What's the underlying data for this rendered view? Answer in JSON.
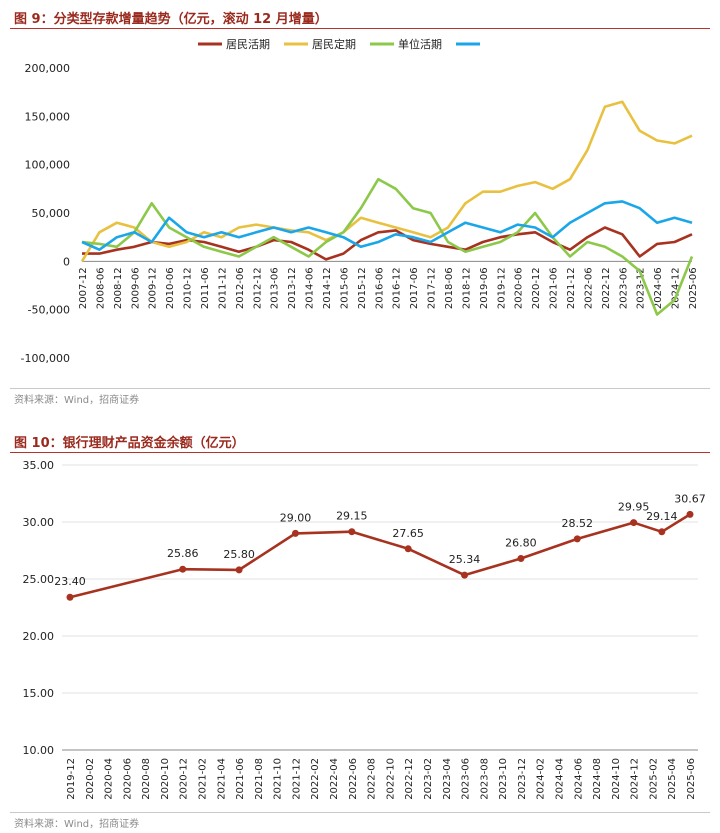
{
  "figure9": {
    "title": "图 9：分类型存款增量趋势（亿元，滚动 12 月增量）",
    "source": "资料来源：Wind，招商证券",
    "legend_color_unlabeled": "#1aa6e8"
  },
  "figure10": {
    "title": "图 10：银行理财产品资金余额（亿元）",
    "source": "资料来源：Wind，招商证券"
  },
  "chart_data": [
    {
      "type": "line",
      "title": "",
      "xlabel": "",
      "ylabel": "",
      "ylim": [
        -100000,
        200000
      ],
      "yticks": [
        -100000,
        -50000,
        0,
        50000,
        100000,
        150000,
        200000
      ],
      "ytick_labels": [
        "-100,000",
        "-50,000",
        "0",
        "50,000",
        "100,000",
        "150,000",
        "200,000"
      ],
      "xticks": [
        "2007-12",
        "2008-06",
        "2008-12",
        "2009-06",
        "2009-12",
        "2010-06",
        "2010-12",
        "2011-06",
        "2011-12",
        "2012-06",
        "2012-12",
        "2013-06",
        "2013-12",
        "2014-06",
        "2014-12",
        "2015-06",
        "2015-12",
        "2016-06",
        "2016-12",
        "2017-06",
        "2017-12",
        "2018-06",
        "2018-12",
        "2019-06",
        "2019-12",
        "2020-06",
        "2020-12",
        "2021-06",
        "2021-12",
        "2022-06",
        "2022-12",
        "2023-06",
        "2023-12",
        "2024-06",
        "2024-12",
        "2025-06"
      ],
      "grid": false,
      "legend_position": "top",
      "series": [
        {
          "name": "居民活期",
          "color": "#a83220",
          "points": [
            [
              "2007-12",
              8000
            ],
            [
              "2008-06",
              8000
            ],
            [
              "2008-12",
              12000
            ],
            [
              "2009-06",
              15000
            ],
            [
              "2009-12",
              20000
            ],
            [
              "2010-06",
              18000
            ],
            [
              "2010-12",
              22000
            ],
            [
              "2011-06",
              20000
            ],
            [
              "2011-12",
              15000
            ],
            [
              "2012-06",
              10000
            ],
            [
              "2012-12",
              15000
            ],
            [
              "2013-06",
              22000
            ],
            [
              "2013-12",
              20000
            ],
            [
              "2014-06",
              12000
            ],
            [
              "2014-12",
              2000
            ],
            [
              "2015-06",
              8000
            ],
            [
              "2015-12",
              22000
            ],
            [
              "2016-06",
              30000
            ],
            [
              "2016-12",
              32000
            ],
            [
              "2017-06",
              22000
            ],
            [
              "2017-12",
              18000
            ],
            [
              "2018-06",
              15000
            ],
            [
              "2018-12",
              12000
            ],
            [
              "2019-06",
              20000
            ],
            [
              "2019-12",
              25000
            ],
            [
              "2020-06",
              28000
            ],
            [
              "2020-12",
              30000
            ],
            [
              "2021-06",
              20000
            ],
            [
              "2021-12",
              12000
            ],
            [
              "2022-06",
              25000
            ],
            [
              "2022-12",
              35000
            ],
            [
              "2023-06",
              28000
            ],
            [
              "2023-12",
              5000
            ],
            [
              "2024-06",
              18000
            ],
            [
              "2024-12",
              20000
            ],
            [
              "2025-06",
              28000
            ]
          ]
        },
        {
          "name": "居民定期",
          "color": "#e8c140",
          "points": [
            [
              "2007-12",
              0
            ],
            [
              "2008-06",
              30000
            ],
            [
              "2008-12",
              40000
            ],
            [
              "2009-06",
              35000
            ],
            [
              "2009-12",
              20000
            ],
            [
              "2010-06",
              15000
            ],
            [
              "2010-12",
              20000
            ],
            [
              "2011-06",
              30000
            ],
            [
              "2011-12",
              25000
            ],
            [
              "2012-06",
              35000
            ],
            [
              "2012-12",
              38000
            ],
            [
              "2013-06",
              35000
            ],
            [
              "2013-12",
              32000
            ],
            [
              "2014-06",
              30000
            ],
            [
              "2014-12",
              22000
            ],
            [
              "2015-06",
              30000
            ],
            [
              "2015-12",
              45000
            ],
            [
              "2016-06",
              40000
            ],
            [
              "2016-12",
              35000
            ],
            [
              "2017-06",
              30000
            ],
            [
              "2017-12",
              25000
            ],
            [
              "2018-06",
              35000
            ],
            [
              "2018-12",
              60000
            ],
            [
              "2019-06",
              72000
            ],
            [
              "2019-12",
              72000
            ],
            [
              "2020-06",
              78000
            ],
            [
              "2020-12",
              82000
            ],
            [
              "2021-06",
              75000
            ],
            [
              "2021-12",
              85000
            ],
            [
              "2022-06",
              115000
            ],
            [
              "2022-12",
              160000
            ],
            [
              "2023-06",
              165000
            ],
            [
              "2023-12",
              135000
            ],
            [
              "2024-06",
              125000
            ],
            [
              "2024-12",
              122000
            ],
            [
              "2025-06",
              130000
            ]
          ]
        },
        {
          "name": "单位活期",
          "color": "#8cc84a",
          "points": [
            [
              "2007-12",
              20000
            ],
            [
              "2008-06",
              18000
            ],
            [
              "2008-12",
              15000
            ],
            [
              "2009-06",
              30000
            ],
            [
              "2009-12",
              60000
            ],
            [
              "2010-06",
              35000
            ],
            [
              "2010-12",
              25000
            ],
            [
              "2011-06",
              15000
            ],
            [
              "2011-12",
              10000
            ],
            [
              "2012-06",
              5000
            ],
            [
              "2012-12",
              15000
            ],
            [
              "2013-06",
              25000
            ],
            [
              "2013-12",
              15000
            ],
            [
              "2014-06",
              5000
            ],
            [
              "2014-12",
              20000
            ],
            [
              "2015-06",
              30000
            ],
            [
              "2015-12",
              55000
            ],
            [
              "2016-06",
              85000
            ],
            [
              "2016-12",
              75000
            ],
            [
              "2017-06",
              55000
            ],
            [
              "2017-12",
              50000
            ],
            [
              "2018-06",
              20000
            ],
            [
              "2018-12",
              10000
            ],
            [
              "2019-06",
              15000
            ],
            [
              "2019-12",
              20000
            ],
            [
              "2020-06",
              30000
            ],
            [
              "2020-12",
              50000
            ],
            [
              "2021-06",
              25000
            ],
            [
              "2021-12",
              5000
            ],
            [
              "2022-06",
              20000
            ],
            [
              "2022-12",
              15000
            ],
            [
              "2023-06",
              5000
            ],
            [
              "2023-12",
              -10000
            ],
            [
              "2024-06",
              -55000
            ],
            [
              "2024-12",
              -40000
            ],
            [
              "2025-06",
              5000
            ]
          ]
        },
        {
          "name": "",
          "color": "#1aa6e8",
          "points": [
            [
              "2007-12",
              20000
            ],
            [
              "2008-06",
              12000
            ],
            [
              "2008-12",
              25000
            ],
            [
              "2009-06",
              30000
            ],
            [
              "2009-12",
              20000
            ],
            [
              "2010-06",
              45000
            ],
            [
              "2010-12",
              30000
            ],
            [
              "2011-06",
              25000
            ],
            [
              "2011-12",
              30000
            ],
            [
              "2012-06",
              25000
            ],
            [
              "2012-12",
              30000
            ],
            [
              "2013-06",
              35000
            ],
            [
              "2013-12",
              30000
            ],
            [
              "2014-06",
              35000
            ],
            [
              "2014-12",
              30000
            ],
            [
              "2015-06",
              25000
            ],
            [
              "2015-12",
              15000
            ],
            [
              "2016-06",
              20000
            ],
            [
              "2016-12",
              28000
            ],
            [
              "2017-06",
              25000
            ],
            [
              "2017-12",
              20000
            ],
            [
              "2018-06",
              30000
            ],
            [
              "2018-12",
              40000
            ],
            [
              "2019-06",
              35000
            ],
            [
              "2019-12",
              30000
            ],
            [
              "2020-06",
              38000
            ],
            [
              "2020-12",
              35000
            ],
            [
              "2021-06",
              25000
            ],
            [
              "2021-12",
              40000
            ],
            [
              "2022-06",
              50000
            ],
            [
              "2022-12",
              60000
            ],
            [
              "2023-06",
              62000
            ],
            [
              "2023-12",
              55000
            ],
            [
              "2024-06",
              40000
            ],
            [
              "2024-12",
              45000
            ],
            [
              "2025-06",
              40000
            ]
          ]
        }
      ]
    },
    {
      "type": "line",
      "title": "",
      "xlabel": "",
      "ylabel": "",
      "ylim": [
        10,
        35
      ],
      "yticks": [
        10,
        15,
        20,
        25,
        30,
        35
      ],
      "ytick_labels": [
        "10.00",
        "15.00",
        "20.00",
        "25.00",
        "30.00",
        "35.00"
      ],
      "xticks": [
        "2019-12",
        "2020-02",
        "2020-04",
        "2020-06",
        "2020-08",
        "2020-10",
        "2020-12",
        "2021-02",
        "2021-04",
        "2021-06",
        "2021-08",
        "2021-10",
        "2021-12",
        "2022-02",
        "2022-04",
        "2022-06",
        "2022-08",
        "2022-10",
        "2022-12",
        "2023-02",
        "2023-04",
        "2023-06",
        "2023-08",
        "2023-10",
        "2023-12",
        "2024-02",
        "2024-04",
        "2024-06",
        "2024-08",
        "2024-10",
        "2024-12",
        "2025-02",
        "2025-04",
        "2025-06"
      ],
      "grid": true,
      "series": [
        {
          "name": "",
          "color": "#a83220",
          "points": [
            [
              "2019-12",
              23.4
            ],
            [
              "2020-12",
              25.86
            ],
            [
              "2021-06",
              25.8
            ],
            [
              "2021-12",
              29.0
            ],
            [
              "2022-06",
              29.15
            ],
            [
              "2022-12",
              27.65
            ],
            [
              "2023-06",
              25.34
            ],
            [
              "2023-12",
              26.8
            ],
            [
              "2024-06",
              28.52
            ],
            [
              "2024-12",
              29.95
            ],
            [
              "2025-03",
              29.14
            ],
            [
              "2025-06",
              30.67
            ]
          ],
          "labels": [
            "23.40",
            "25.86",
            "25.80",
            "29.00",
            "29.15",
            "27.65",
            "25.34",
            "26.80",
            "28.52",
            "29.95",
            "29.14",
            "30.67"
          ]
        }
      ]
    }
  ]
}
